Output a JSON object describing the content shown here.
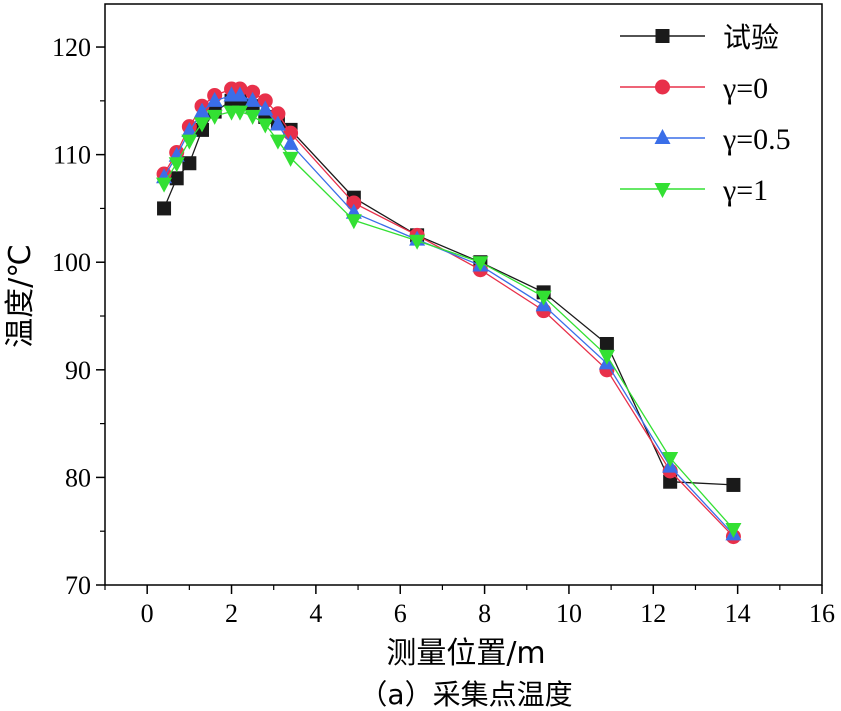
{
  "chart_data": {
    "type": "line",
    "xlabel": "测量位置/m",
    "ylabel": "温度/℃",
    "caption": "（a）采集点温度",
    "xlim": [
      -1,
      16
    ],
    "ylim": [
      70,
      124
    ],
    "xticks": [
      0,
      2,
      4,
      6,
      8,
      10,
      12,
      14,
      16
    ],
    "yticks": [
      70,
      80,
      90,
      100,
      110,
      120
    ],
    "grid": false,
    "legend_position": "top-right",
    "series": [
      {
        "name": "试验",
        "color": "#1a1a1a",
        "marker": "square",
        "points": [
          [
            0.4,
            105.0
          ],
          [
            0.7,
            107.8
          ],
          [
            1.0,
            109.2
          ],
          [
            1.3,
            112.3
          ],
          [
            1.6,
            114.0
          ],
          [
            2.0,
            115.0
          ],
          [
            2.2,
            115.0
          ],
          [
            2.5,
            114.5
          ],
          [
            2.8,
            113.5
          ],
          [
            3.1,
            113.0
          ],
          [
            3.4,
            112.3
          ],
          [
            4.9,
            106.0
          ],
          [
            6.4,
            102.5
          ],
          [
            7.9,
            100.0
          ],
          [
            9.4,
            97.2
          ],
          [
            10.9,
            92.4
          ],
          [
            12.4,
            79.6
          ],
          [
            13.9,
            79.3
          ]
        ]
      },
      {
        "name": "γ=0",
        "color": "#e8304a",
        "marker": "circle",
        "points": [
          [
            0.4,
            108.2
          ],
          [
            0.7,
            110.2
          ],
          [
            1.0,
            112.6
          ],
          [
            1.3,
            114.5
          ],
          [
            1.6,
            115.5
          ],
          [
            2.0,
            116.1
          ],
          [
            2.2,
            116.1
          ],
          [
            2.5,
            115.8
          ],
          [
            2.8,
            115.0
          ],
          [
            3.1,
            113.8
          ],
          [
            3.4,
            112.0
          ],
          [
            4.9,
            105.5
          ],
          [
            6.4,
            102.5
          ],
          [
            7.9,
            99.3
          ],
          [
            9.4,
            95.5
          ],
          [
            10.9,
            90.0
          ],
          [
            12.4,
            80.6
          ],
          [
            13.9,
            74.5
          ]
        ]
      },
      {
        "name": "γ=0.5",
        "color": "#3a6ee8",
        "marker": "triangle-up",
        "points": [
          [
            0.4,
            107.9
          ],
          [
            0.7,
            109.9
          ],
          [
            1.0,
            112.2
          ],
          [
            1.3,
            114.0
          ],
          [
            1.6,
            115.0
          ],
          [
            2.0,
            115.5
          ],
          [
            2.2,
            115.5
          ],
          [
            2.5,
            115.0
          ],
          [
            2.8,
            114.2
          ],
          [
            3.1,
            112.8
          ],
          [
            3.4,
            111.0
          ],
          [
            4.9,
            104.6
          ],
          [
            6.4,
            102.1
          ],
          [
            7.9,
            99.7
          ],
          [
            9.4,
            96.0
          ],
          [
            10.9,
            90.6
          ],
          [
            12.4,
            81.0
          ],
          [
            13.9,
            74.7
          ]
        ]
      },
      {
        "name": "γ=1",
        "color": "#33e033",
        "marker": "triangle-down",
        "points": [
          [
            0.4,
            107.3
          ],
          [
            0.7,
            109.2
          ],
          [
            1.0,
            111.3
          ],
          [
            1.3,
            112.9
          ],
          [
            1.6,
            113.6
          ],
          [
            2.0,
            114.0
          ],
          [
            2.2,
            114.0
          ],
          [
            2.5,
            113.6
          ],
          [
            2.8,
            112.8
          ],
          [
            3.1,
            111.3
          ],
          [
            3.4,
            109.7
          ],
          [
            4.9,
            103.9
          ],
          [
            6.4,
            102.0
          ],
          [
            7.9,
            100.0
          ],
          [
            9.4,
            96.8
          ],
          [
            10.9,
            91.3
          ],
          [
            12.4,
            81.8
          ],
          [
            13.9,
            75.2
          ]
        ]
      }
    ]
  }
}
